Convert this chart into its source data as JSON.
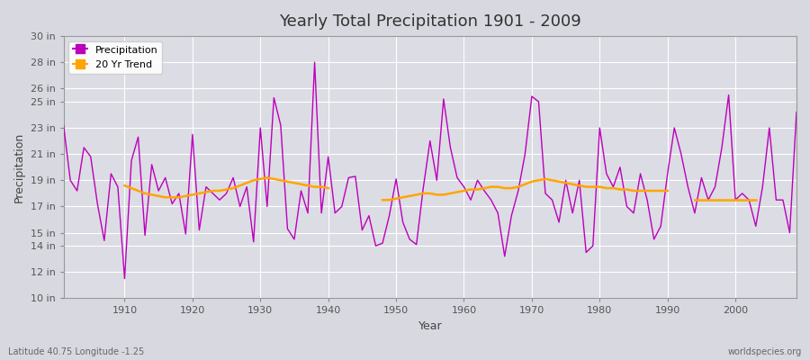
{
  "title": "Yearly Total Precipitation 1901 - 2009",
  "xlabel": "Year",
  "ylabel": "Precipitation",
  "subtitle_lat": "Latitude 40.75 Longitude -1.25",
  "watermark": "worldspecies.org",
  "background_color": "#d8d8e0",
  "plot_bg_color": "#dcdce4",
  "precip_color": "#bb00bb",
  "trend_color": "#ffa500",
  "ylim": [
    10,
    30
  ],
  "yticks": [
    10,
    12,
    14,
    15,
    17,
    19,
    21,
    23,
    25,
    26,
    28,
    30
  ],
  "ytick_labels": [
    "10 in",
    "12 in",
    "14 in",
    "15 in",
    "17 in",
    "19 in",
    "21 in",
    "23 in",
    "25 in",
    "26 in",
    "28 in",
    "30 in"
  ],
  "xticks": [
    1910,
    1920,
    1930,
    1940,
    1950,
    1960,
    1970,
    1980,
    1990,
    2000
  ],
  "xlim": [
    1901,
    2009
  ],
  "years": [
    1901,
    1902,
    1903,
    1904,
    1905,
    1906,
    1907,
    1908,
    1909,
    1910,
    1911,
    1912,
    1913,
    1914,
    1915,
    1916,
    1917,
    1918,
    1919,
    1920,
    1921,
    1922,
    1923,
    1924,
    1925,
    1926,
    1927,
    1928,
    1929,
    1930,
    1931,
    1932,
    1933,
    1934,
    1935,
    1936,
    1937,
    1938,
    1939,
    1940,
    1941,
    1942,
    1943,
    1944,
    1945,
    1946,
    1947,
    1948,
    1949,
    1950,
    1951,
    1952,
    1953,
    1954,
    1955,
    1956,
    1957,
    1958,
    1959,
    1960,
    1961,
    1962,
    1963,
    1964,
    1965,
    1966,
    1967,
    1968,
    1969,
    1970,
    1971,
    1972,
    1973,
    1974,
    1975,
    1976,
    1977,
    1978,
    1979,
    1980,
    1981,
    1982,
    1983,
    1984,
    1985,
    1986,
    1987,
    1988,
    1989,
    1990,
    1991,
    1992,
    1993,
    1994,
    1995,
    1996,
    1997,
    1998,
    1999,
    2000,
    2001,
    2002,
    2003,
    2004,
    2005,
    2006,
    2007,
    2008,
    2009
  ],
  "precip": [
    23.2,
    19.0,
    18.2,
    21.5,
    20.8,
    17.2,
    14.4,
    19.5,
    18.5,
    11.5,
    20.5,
    22.3,
    14.8,
    20.2,
    18.2,
    19.2,
    17.2,
    18.0,
    14.9,
    22.5,
    15.2,
    18.5,
    18.0,
    17.5,
    18.0,
    19.2,
    17.0,
    18.5,
    14.3,
    23.0,
    17.0,
    25.3,
    23.2,
    15.3,
    14.5,
    18.2,
    16.5,
    28.0,
    16.5,
    20.8,
    16.5,
    17.0,
    19.2,
    19.3,
    15.2,
    16.3,
    14.0,
    14.2,
    16.3,
    19.1,
    15.8,
    14.5,
    14.1,
    18.4,
    22.0,
    19.0,
    25.2,
    21.5,
    19.2,
    18.5,
    17.5,
    19.0,
    18.2,
    17.5,
    16.5,
    13.2,
    16.3,
    18.2,
    21.0,
    25.4,
    25.0,
    18.0,
    17.5,
    15.8,
    19.0,
    16.5,
    19.0,
    13.5,
    14.0,
    23.0,
    19.5,
    18.5,
    20.0,
    17.0,
    16.5,
    19.5,
    17.5,
    14.5,
    15.5,
    19.5,
    23.0,
    21.0,
    18.5,
    16.5,
    19.2,
    17.5,
    18.5,
    21.5,
    25.5,
    17.5,
    18.0,
    17.5,
    15.5,
    18.5,
    23.0,
    17.5,
    17.5,
    15.0,
    24.2
  ],
  "trend_segments": [
    {
      "years": [
        1910,
        1911,
        1912,
        1913,
        1914,
        1915,
        1916,
        1917,
        1918,
        1919,
        1920,
        1921,
        1922,
        1923,
        1924,
        1925,
        1926,
        1927,
        1928,
        1929,
        1930,
        1931,
        1932,
        1933,
        1934,
        1935,
        1936,
        1937,
        1938,
        1939,
        1940
      ],
      "vals": [
        18.6,
        18.4,
        18.2,
        18.0,
        17.9,
        17.8,
        17.7,
        17.7,
        17.7,
        17.8,
        17.9,
        18.0,
        18.1,
        18.2,
        18.2,
        18.3,
        18.4,
        18.6,
        18.8,
        19.0,
        19.1,
        19.2,
        19.1,
        19.0,
        18.9,
        18.8,
        18.7,
        18.6,
        18.5,
        18.5,
        18.4
      ]
    },
    {
      "years": [
        1948,
        1949,
        1950,
        1951,
        1952,
        1953,
        1954,
        1955,
        1956,
        1957,
        1958,
        1959,
        1960,
        1961,
        1962,
        1963,
        1964,
        1965,
        1966,
        1967,
        1968,
        1969,
        1970,
        1971,
        1972,
        1973,
        1974,
        1975,
        1976,
        1977,
        1978,
        1979,
        1980,
        1981,
        1982,
        1983,
        1984,
        1985,
        1986,
        1987,
        1988,
        1989,
        1990
      ],
      "vals": [
        17.5,
        17.5,
        17.6,
        17.7,
        17.8,
        17.9,
        18.0,
        18.0,
        17.9,
        17.9,
        18.0,
        18.1,
        18.2,
        18.3,
        18.3,
        18.4,
        18.5,
        18.5,
        18.4,
        18.4,
        18.5,
        18.7,
        18.9,
        19.0,
        19.1,
        19.0,
        18.9,
        18.8,
        18.7,
        18.6,
        18.5,
        18.5,
        18.5,
        18.4,
        18.4,
        18.3,
        18.3,
        18.2,
        18.2,
        18.2,
        18.2,
        18.2,
        18.2
      ]
    },
    {
      "years": [
        1994,
        1995,
        1996,
        1997,
        1998,
        1999,
        2000,
        2001,
        2002,
        2003
      ],
      "vals": [
        17.5,
        17.5,
        17.5,
        17.5,
        17.5,
        17.5,
        17.5,
        17.5,
        17.5,
        17.5
      ]
    }
  ]
}
